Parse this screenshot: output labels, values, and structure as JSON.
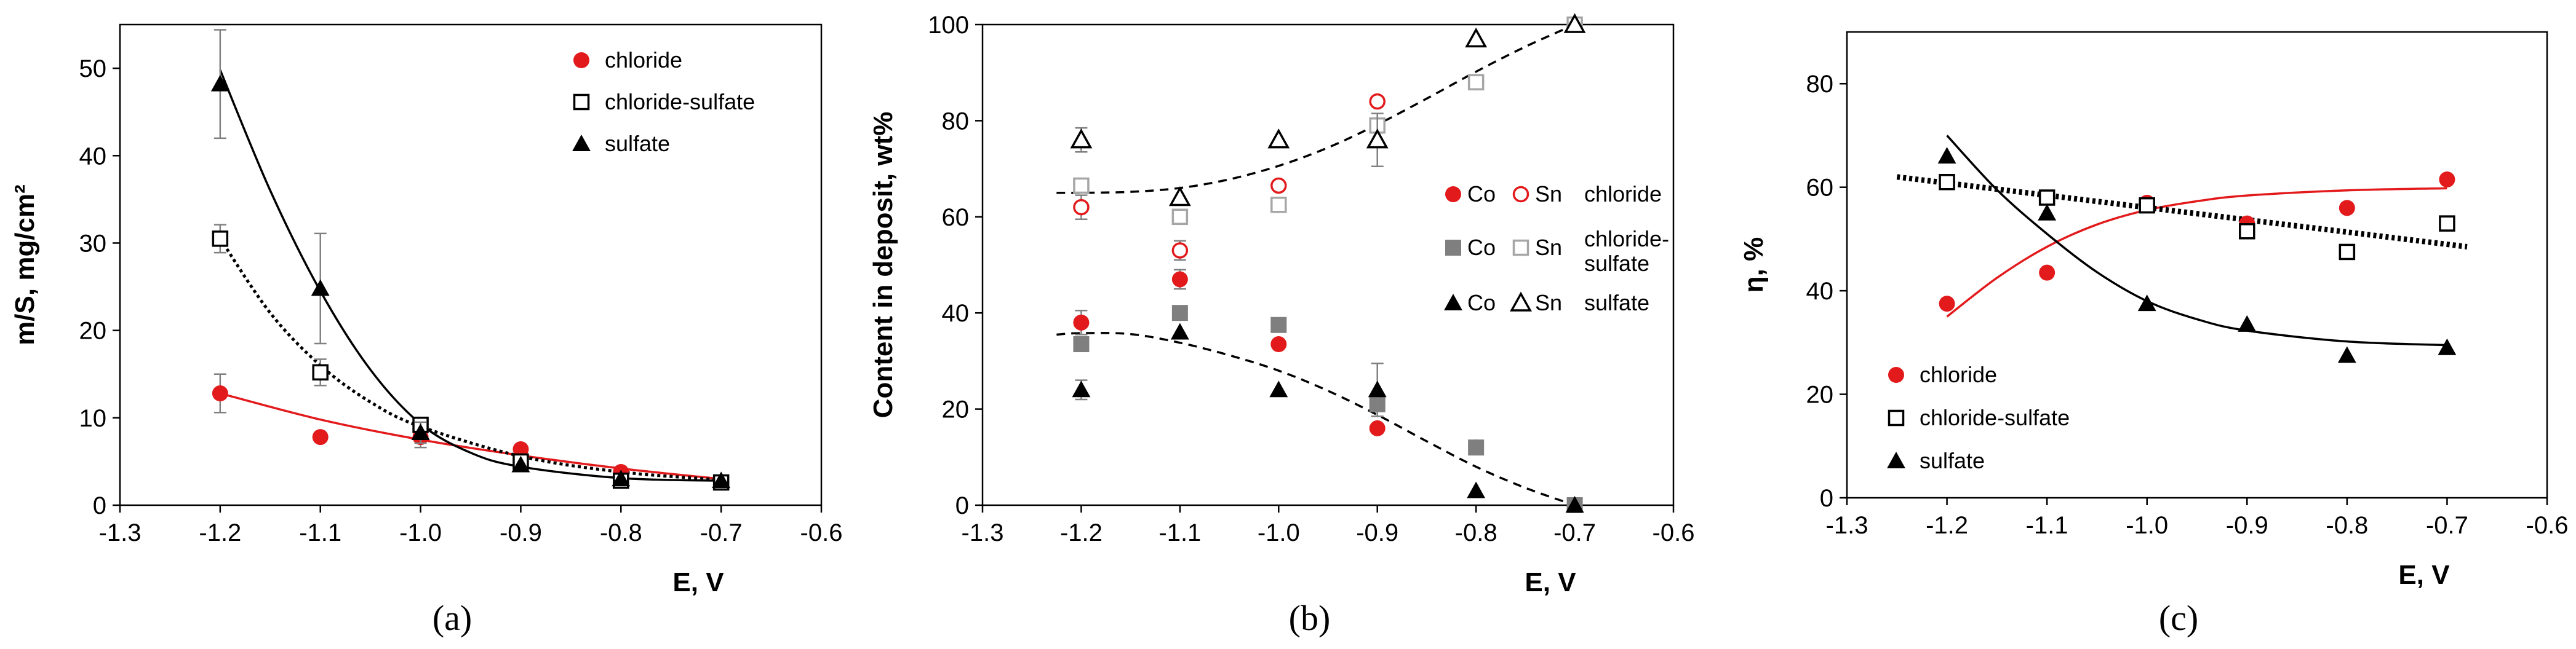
{
  "colors": {
    "red": "#e31a1c",
    "black": "#000000",
    "gray": "#7f7f7f",
    "lightgray": "#a6a6a6"
  },
  "chart_data": [
    {
      "type": "scatter",
      "panel_label": "(a)",
      "xlabel": "E, V",
      "ylabel": "m/S, mg/cm²",
      "xlim": [
        -1.3,
        -0.6
      ],
      "ylim": [
        0,
        55
      ],
      "x_ticks": [
        -1.3,
        -1.2,
        -1.1,
        -1.0,
        -0.9,
        -0.8,
        -0.7,
        -0.6
      ],
      "x_tick_labels": [
        "-1.3",
        "-1.2",
        "-1.1",
        "-1.0",
        "-0.9",
        "-0.8",
        "-0.7",
        "-0.6"
      ],
      "y_ticks": [
        0,
        10,
        20,
        30,
        40,
        50
      ],
      "y_tick_labels": [
        "0",
        "10",
        "20",
        "30",
        "40",
        "50"
      ],
      "grid": false,
      "legend_position": "top-right",
      "series": [
        {
          "name": "chloride",
          "marker": "filled-circle",
          "color": "#e31a1c",
          "x": [
            -1.2,
            -1.1,
            -1.0,
            -0.9,
            -0.8,
            -0.7
          ],
          "y": [
            12.8,
            7.8,
            7.8,
            6.4,
            3.8,
            2.6
          ],
          "err": [
            2.2,
            0,
            1.2,
            0,
            0,
            0
          ],
          "trend": {
            "x": [
              -1.2,
              -1.1,
              -1.0,
              -0.9,
              -0.8,
              -0.7
            ],
            "y": [
              12.8,
              9.8,
              7.5,
              5.7,
              4.2,
              3.0
            ],
            "style": "solid",
            "color": "#e31a1c"
          }
        },
        {
          "name": "chloride-sulfate",
          "marker": "open-square",
          "color": "#000000",
          "x": [
            -1.2,
            -1.1,
            -1.0,
            -0.9,
            -0.8,
            -0.7
          ],
          "y": [
            30.5,
            15.2,
            9.2,
            5.0,
            2.8,
            2.6
          ],
          "err": [
            1.6,
            1.5,
            0.8,
            0,
            0,
            0
          ],
          "trend": {
            "x": [
              -1.2,
              -1.15,
              -1.1,
              -1.05,
              -1.0,
              -0.9,
              -0.8,
              -0.7
            ],
            "y": [
              30.5,
              22.0,
              16.0,
              11.8,
              9.0,
              5.6,
              3.8,
              2.9
            ],
            "style": "dotted",
            "color": "#000000"
          }
        },
        {
          "name": "sulfate",
          "marker": "filled-triangle",
          "color": "#000000",
          "x": [
            -1.2,
            -1.1,
            -1.0,
            -0.9,
            -0.8,
            -0.7
          ],
          "y": [
            48.2,
            24.8,
            8.3,
            4.6,
            3.0,
            2.8
          ],
          "err": [
            6.2,
            6.3,
            1.2,
            0,
            0,
            0
          ],
          "trend": {
            "x": [
              -1.2,
              -1.15,
              -1.1,
              -1.05,
              -1.0,
              -0.95,
              -0.9,
              -0.8,
              -0.7
            ],
            "y": [
              49.8,
              36.0,
              24.5,
              15.5,
              9.3,
              6.0,
              4.4,
              3.1,
              2.8
            ],
            "style": "solid",
            "color": "#000000"
          }
        }
      ]
    },
    {
      "type": "scatter",
      "panel_label": "(b)",
      "xlabel": "E, V",
      "ylabel": "Content in deposit, wt%",
      "xlim": [
        -1.3,
        -0.6
      ],
      "ylim": [
        0,
        100
      ],
      "x_ticks": [
        -1.3,
        -1.2,
        -1.1,
        -1.0,
        -0.9,
        -0.8,
        -0.7,
        -0.6
      ],
      "x_tick_labels": [
        "-1.3",
        "-1.2",
        "-1.1",
        "-1.0",
        "-0.9",
        "-0.8",
        "-0.7",
        "-0.6"
      ],
      "y_ticks": [
        0,
        20,
        40,
        60,
        80,
        100
      ],
      "y_tick_labels": [
        "0",
        "20",
        "40",
        "60",
        "80",
        "100"
      ],
      "grid": false,
      "legend_position": "right",
      "legend": {
        "co_label": "Co",
        "sn_label": "Sn",
        "groups": [
          {
            "label_lines": [
              "chloride"
            ]
          },
          {
            "label_lines": [
              "chloride-",
              "sulfate"
            ]
          },
          {
            "label_lines": [
              "sulfate"
            ]
          }
        ]
      },
      "series": [
        {
          "name": "Co chloride",
          "marker": "filled-circle",
          "color": "#e31a1c",
          "x": [
            -1.2,
            -1.1,
            -1.0,
            -0.9,
            -0.8,
            -0.7
          ],
          "y": [
            38,
            47,
            33.5,
            16,
            12,
            0
          ],
          "err": [
            2.5,
            2,
            0,
            0,
            0,
            0
          ]
        },
        {
          "name": "Sn chloride",
          "marker": "open-circle",
          "color": "#e31a1c",
          "x": [
            -1.2,
            -1.1,
            -1.0,
            -0.9,
            -0.8,
            -0.7
          ],
          "y": [
            62,
            53,
            66.5,
            84,
            88,
            100
          ],
          "err": [
            2.5,
            2,
            0,
            0,
            0,
            0
          ]
        },
        {
          "name": "Co chloride-sulfate",
          "marker": "filled-square",
          "color": "#7f7f7f",
          "x": [
            -1.2,
            -1.1,
            -1.0,
            -0.9,
            -0.8,
            -0.7
          ],
          "y": [
            33.5,
            40,
            37.5,
            21,
            12,
            0
          ],
          "err": [
            0,
            0,
            0,
            0,
            0,
            0
          ]
        },
        {
          "name": "Sn chloride-sulfate",
          "marker": "open-square",
          "color": "#a6a6a6",
          "x": [
            -1.2,
            -1.1,
            -1.0,
            -0.9,
            -0.8,
            -0.7
          ],
          "y": [
            66.5,
            60,
            62.5,
            79,
            88,
            100
          ],
          "err": [
            0,
            0,
            0,
            0,
            0,
            0
          ]
        },
        {
          "name": "Co sulfate",
          "marker": "filled-triangle",
          "color": "#000000",
          "x": [
            -1.2,
            -1.1,
            -1.0,
            -0.9,
            -0.8,
            -0.7
          ],
          "y": [
            24,
            36,
            24,
            24,
            3,
            0
          ],
          "err": [
            2,
            0,
            0,
            5.5,
            0,
            0
          ]
        },
        {
          "name": "Sn sulfate",
          "marker": "open-triangle",
          "color": "#000000",
          "x": [
            -1.2,
            -1.1,
            -1.0,
            -0.9,
            -0.8,
            -0.7
          ],
          "y": [
            76,
            64,
            76,
            76,
            97,
            100
          ],
          "err": [
            2.5,
            0,
            0,
            5.5,
            0,
            0
          ]
        }
      ],
      "trendlines": [
        {
          "style": "dashed",
          "color": "#000000",
          "x": [
            -1.225,
            -1.2,
            -1.15,
            -1.1,
            -1.05,
            -1.0,
            -0.95,
            -0.9,
            -0.85,
            -0.8,
            -0.75,
            -0.7
          ],
          "y": [
            35.5,
            35.8,
            35.6,
            33.8,
            31.2,
            28,
            23.8,
            18.8,
            13.3,
            8,
            3.6,
            0
          ]
        },
        {
          "style": "dashed",
          "color": "#000000",
          "x": [
            -1.225,
            -1.2,
            -1.15,
            -1.1,
            -1.05,
            -1.0,
            -0.95,
            -0.9,
            -0.85,
            -0.8,
            -0.75,
            -0.7
          ],
          "y": [
            65,
            65,
            65.2,
            66,
            67.8,
            70.6,
            74.4,
            79.2,
            84.6,
            90.2,
            95.4,
            100
          ]
        }
      ]
    },
    {
      "type": "scatter",
      "panel_label": "(c)",
      "xlabel": "E, V",
      "ylabel": "η, %",
      "xlim": [
        -1.3,
        -0.6
      ],
      "ylim": [
        0,
        90
      ],
      "x_ticks": [
        -1.3,
        -1.2,
        -1.1,
        -1.0,
        -0.9,
        -0.8,
        -0.7,
        -0.6
      ],
      "x_tick_labels": [
        "-1.3",
        "-1.2",
        "-1.1",
        "-1.0",
        "-0.9",
        "-0.8",
        "-0.7",
        "-0.6"
      ],
      "y_ticks": [
        0,
        20,
        40,
        60,
        80
      ],
      "y_tick_labels": [
        "0",
        "20",
        "40",
        "60",
        "80"
      ],
      "grid": false,
      "legend_position": "bottom-left",
      "series": [
        {
          "name": "chloride",
          "marker": "filled-circle",
          "color": "#e31a1c",
          "x": [
            -1.2,
            -1.1,
            -1.0,
            -0.9,
            -0.8,
            -0.7
          ],
          "y": [
            37.5,
            43.5,
            57,
            53,
            56,
            61.5
          ],
          "trend": {
            "x": [
              -1.2,
              -1.15,
              -1.1,
              -1.05,
              -1.0,
              -0.95,
              -0.9,
              -0.8,
              -0.7
            ],
            "y": [
              35,
              42.5,
              48.5,
              52.8,
              55.6,
              57.3,
              58.4,
              59.4,
              59.8
            ],
            "style": "solid",
            "color": "#e31a1c"
          }
        },
        {
          "name": "chloride-sulfate",
          "marker": "open-square",
          "color": "#000000",
          "x": [
            -1.2,
            -1.1,
            -1.0,
            -0.9,
            -0.8,
            -0.7
          ],
          "y": [
            61,
            58,
            56.5,
            51.5,
            47.5,
            53
          ],
          "trend": {
            "x": [
              -1.25,
              -0.68
            ],
            "y": [
              62,
              48.5
            ],
            "style": "dotted-bold",
            "color": "#000000"
          }
        },
        {
          "name": "sulfate",
          "marker": "filled-triangle",
          "color": "#000000",
          "x": [
            -1.2,
            -1.1,
            -1.0,
            -0.9,
            -0.8,
            -0.7
          ],
          "y": [
            66,
            55,
            37.5,
            33.5,
            27.5,
            29
          ],
          "trend": {
            "x": [
              -1.2,
              -1.15,
              -1.1,
              -1.05,
              -1.0,
              -0.95,
              -0.9,
              -0.8,
              -0.7
            ],
            "y": [
              70,
              59.5,
              51,
              43.6,
              38,
              34.5,
              32.3,
              30.2,
              29.5
            ],
            "style": "solid",
            "color": "#000000"
          }
        }
      ]
    }
  ]
}
